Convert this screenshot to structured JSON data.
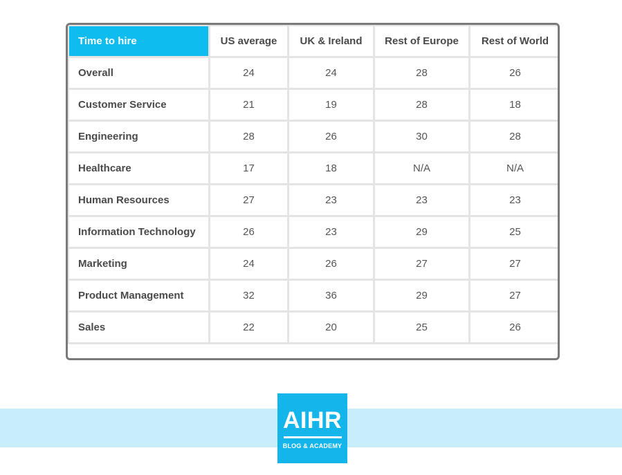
{
  "chart_data": {
    "type": "table",
    "columns": [
      "Time to hire",
      "US average",
      "UK & Ireland",
      "Rest of Europe",
      "Rest of World"
    ],
    "rows": [
      {
        "label": "Overall",
        "values": [
          "24",
          "24",
          "28",
          "26"
        ]
      },
      {
        "label": "Customer Service",
        "values": [
          "21",
          "19",
          "28",
          "18"
        ]
      },
      {
        "label": "Engineering",
        "values": [
          "28",
          "26",
          "30",
          "28"
        ]
      },
      {
        "label": "Healthcare",
        "values": [
          "17",
          "18",
          "N/A",
          "N/A"
        ]
      },
      {
        "label": "Human Resources",
        "values": [
          "27",
          "23",
          "23",
          "23"
        ]
      },
      {
        "label": "Information Technology",
        "values": [
          "26",
          "23",
          "29",
          "25"
        ]
      },
      {
        "label": "Marketing",
        "values": [
          "24",
          "26",
          "27",
          "27"
        ]
      },
      {
        "label": "Product Management",
        "values": [
          "32",
          "36",
          "29",
          "27"
        ]
      },
      {
        "label": "Sales",
        "values": [
          "22",
          "20",
          "25",
          "26"
        ]
      }
    ]
  },
  "logo": {
    "name": "AIHR",
    "tagline": "BLOG & ACADEMY"
  },
  "colors": {
    "header_accent": "#0fbcf0",
    "band": "#c8eefc",
    "logo_bg": "#13b5ea"
  }
}
